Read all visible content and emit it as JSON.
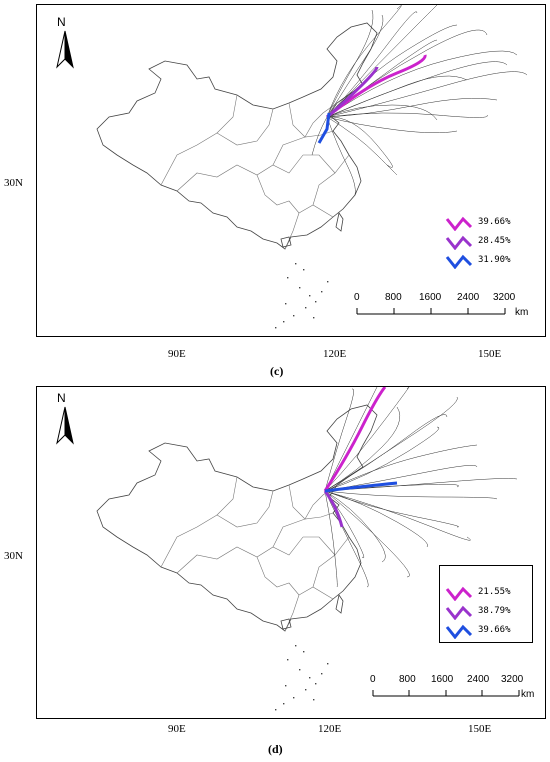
{
  "panels": [
    {
      "id": "c",
      "caption": "(c)",
      "lat_label": "30N",
      "lon_labels": [
        "90E",
        "120E",
        "150E"
      ],
      "north": "N",
      "legend": [
        {
          "pct": "39.66%",
          "color": "#cc22cc"
        },
        {
          "pct": "28.45%",
          "color": "#9933cc"
        },
        {
          "pct": "31.90%",
          "color": "#1f4fe0"
        }
      ],
      "scalebar": {
        "ticks": [
          "0",
          "800",
          "1600",
          "2400",
          "3200"
        ],
        "unit": "km"
      }
    },
    {
      "id": "d",
      "caption": "(d)",
      "lat_label": "30N",
      "lon_labels": [
        "90E",
        "120E",
        "150E"
      ],
      "north": "N",
      "legend": [
        {
          "pct": "21.55%",
          "color": "#cc22cc"
        },
        {
          "pct": "38.79%",
          "color": "#9933cc"
        },
        {
          "pct": "39.66%",
          "color": "#1f4fe0"
        }
      ],
      "scalebar": {
        "ticks": [
          "0",
          "800",
          "1600",
          "2400",
          "3200"
        ],
        "unit": "km"
      }
    }
  ]
}
